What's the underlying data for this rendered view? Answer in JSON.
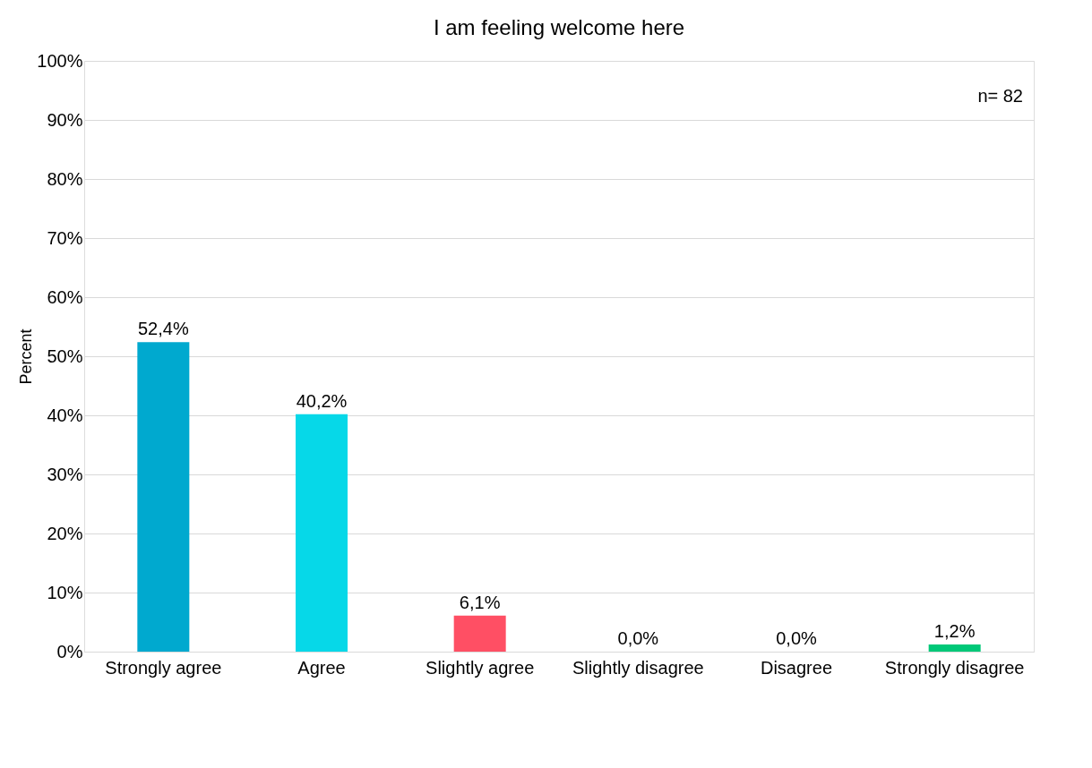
{
  "chart_data": {
    "type": "bar",
    "title": "I am feeling welcome here",
    "ylabel": "Percent",
    "categories": [
      "Strongly agree",
      "Agree",
      "Slightly agree",
      "Slightly disagree",
      "Disagree",
      "Strongly disagree"
    ],
    "values": [
      52.4,
      40.2,
      6.1,
      0.0,
      0.0,
      1.2
    ],
    "value_labels": [
      "52,4%",
      "40,2%",
      "6,1%",
      "0,0%",
      "0,0%",
      "1,2%"
    ],
    "colors": [
      "#00a9cf",
      "#06d8e8",
      "#ff4f64",
      "#7f7f7f",
      "#7f7f7f",
      "#00c878"
    ],
    "ylim": [
      0,
      100
    ],
    "yticks": [
      {
        "value": 0,
        "label": "0%"
      },
      {
        "value": 10,
        "label": "10%"
      },
      {
        "value": 20,
        "label": "20%"
      },
      {
        "value": 30,
        "label": "30%"
      },
      {
        "value": 40,
        "label": "40%"
      },
      {
        "value": 50,
        "label": "50%"
      },
      {
        "value": 60,
        "label": "60%"
      },
      {
        "value": 70,
        "label": "70%"
      },
      {
        "value": 80,
        "label": "80%"
      },
      {
        "value": 90,
        "label": "90%"
      },
      {
        "value": 100,
        "label": "100%"
      }
    ],
    "grid": "y",
    "legend": false,
    "annotations": [
      "n= 82"
    ]
  }
}
